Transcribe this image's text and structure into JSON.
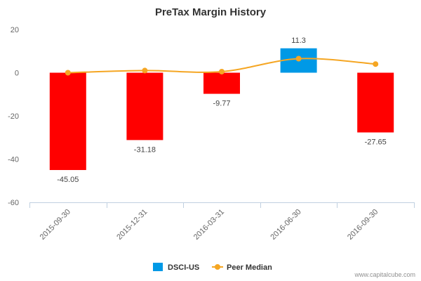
{
  "chart_data": {
    "type": "bar",
    "title": "PreTax Margin History",
    "categories": [
      "2015-09-30",
      "2015-12-31",
      "2016-03-31",
      "2016-06-30",
      "2016-09-30"
    ],
    "series": [
      {
        "name": "DSCI-US",
        "type": "bar",
        "values": [
          -45.05,
          -31.18,
          -9.77,
          11.3,
          -27.65
        ],
        "data_labels": [
          "-45.05",
          "-31.18",
          "-9.77",
          "11.3",
          "-27.65"
        ],
        "legend_color": "#0099e6",
        "positive_color": "#0099e6",
        "negative_color": "#ff0000"
      },
      {
        "name": "Peer Median",
        "type": "line",
        "values": [
          0,
          1,
          0.5,
          6.5,
          4
        ],
        "color": "#f5a623"
      }
    ],
    "ylim": [
      -60,
      20
    ],
    "yticks": [
      20,
      0,
      -20,
      -40,
      -60
    ],
    "xlabel": "",
    "ylabel": "",
    "legend_position": "bottom-center",
    "grid": false
  },
  "footer": {
    "credit": "www.capitalcube.com"
  }
}
